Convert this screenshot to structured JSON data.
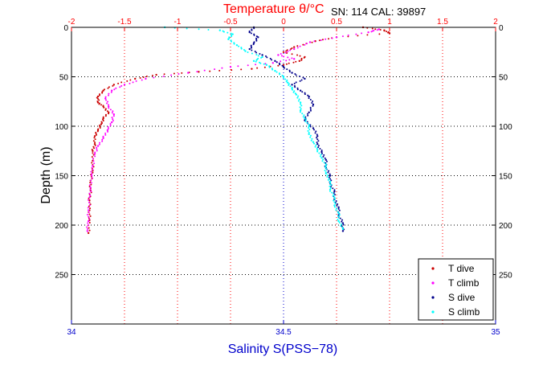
{
  "colors": {
    "temperature_axis": "#ff0000",
    "salinity_axis": "#0000cc",
    "t_dive": "#cc0000",
    "t_climb": "#ff00ff",
    "s_dive": "#00008b",
    "s_climb": "#00ffff",
    "grid_salinity": "#0000cc",
    "grid_temperature": "#ff0000",
    "grid_depth": "#000000"
  },
  "chart_data": {
    "type": "scatter",
    "title": "Temperature θ/°C",
    "annotation": "SN: 114  CAL: 39897",
    "ylabel": "Depth (m)",
    "xlabel": "Salinity S(PSS−78)",
    "x_top_label": "Temperature θ/°C",
    "y_axis": {
      "range": [
        0,
        300
      ],
      "reversed": true,
      "ticks": [
        0,
        50,
        100,
        150,
        200,
        250
      ],
      "tick_labels": [
        "0",
        "50",
        "100",
        "150",
        "200",
        "250"
      ]
    },
    "x_top_axis": {
      "range": [
        -2,
        2
      ],
      "ticks": [
        -2,
        -1.5,
        -1,
        -0.5,
        0,
        0.5,
        1,
        1.5,
        2
      ],
      "tick_labels": [
        "-2",
        "-1.5",
        "-1",
        "-0.5",
        "0",
        "0.5",
        "1",
        "1.5",
        "2"
      ]
    },
    "x_bottom_axis": {
      "range": [
        34,
        35
      ],
      "ticks": [
        34,
        34.5,
        35
      ],
      "tick_labels": [
        "34",
        "34.5",
        "35"
      ]
    },
    "grid": true,
    "legend": {
      "placement": "bottom-right",
      "entries": [
        "T dive",
        "T climb",
        "S dive",
        "S climb"
      ]
    },
    "series": [
      {
        "name": "T dive",
        "x_axis": "temperature",
        "color_key": "t_dive",
        "points": [
          [
            0.75,
            0
          ],
          [
            0.95,
            3
          ],
          [
            1.0,
            6
          ],
          [
            0.5,
            10
          ],
          [
            0.3,
            14
          ],
          [
            0.1,
            20
          ],
          [
            0.0,
            25
          ],
          [
            0.2,
            30
          ],
          [
            0.15,
            34
          ],
          [
            0.0,
            38
          ],
          [
            -0.3,
            42
          ],
          [
            -0.8,
            45
          ],
          [
            -1.2,
            48
          ],
          [
            -1.4,
            52
          ],
          [
            -1.6,
            58
          ],
          [
            -1.7,
            64
          ],
          [
            -1.75,
            70
          ],
          [
            -1.75,
            76
          ],
          [
            -1.7,
            80
          ],
          [
            -1.65,
            86
          ],
          [
            -1.7,
            92
          ],
          [
            -1.72,
            98
          ],
          [
            -1.75,
            104
          ],
          [
            -1.78,
            110
          ],
          [
            -1.78,
            118
          ],
          [
            -1.8,
            125
          ],
          [
            -1.8,
            135
          ],
          [
            -1.8,
            145
          ],
          [
            -1.82,
            155
          ],
          [
            -1.82,
            165
          ],
          [
            -1.83,
            175
          ],
          [
            -1.83,
            185
          ],
          [
            -1.83,
            195
          ],
          [
            -1.84,
            208
          ]
        ]
      },
      {
        "name": "T climb",
        "x_axis": "temperature",
        "color_key": "t_climb",
        "points": [
          [
            0.9,
            2
          ],
          [
            0.8,
            5
          ],
          [
            0.5,
            10
          ],
          [
            0.25,
            15
          ],
          [
            0.1,
            22
          ],
          [
            -0.05,
            28
          ],
          [
            0.1,
            32
          ],
          [
            -0.1,
            36
          ],
          [
            -0.5,
            40
          ],
          [
            -0.9,
            46
          ],
          [
            -1.3,
            52
          ],
          [
            -1.5,
            58
          ],
          [
            -1.62,
            64
          ],
          [
            -1.68,
            72
          ],
          [
            -1.65,
            80
          ],
          [
            -1.6,
            88
          ],
          [
            -1.62,
            96
          ],
          [
            -1.66,
            104
          ],
          [
            -1.7,
            112
          ],
          [
            -1.75,
            120
          ],
          [
            -1.78,
            128
          ],
          [
            -1.8,
            140
          ],
          [
            -1.81,
            150
          ],
          [
            -1.82,
            162
          ],
          [
            -1.83,
            172
          ],
          [
            -1.84,
            185
          ],
          [
            -1.84,
            196
          ],
          [
            -1.85,
            206
          ]
        ]
      },
      {
        "name": "S dive",
        "x_axis": "salinity",
        "color_key": "s_dive",
        "points": [
          [
            34.43,
            0
          ],
          [
            34.42,
            5
          ],
          [
            34.44,
            10
          ],
          [
            34.43,
            16
          ],
          [
            34.42,
            22
          ],
          [
            34.45,
            28
          ],
          [
            34.48,
            34
          ],
          [
            34.5,
            40
          ],
          [
            34.52,
            46
          ],
          [
            34.55,
            52
          ],
          [
            34.52,
            58
          ],
          [
            34.54,
            64
          ],
          [
            34.56,
            70
          ],
          [
            34.57,
            78
          ],
          [
            34.56,
            86
          ],
          [
            34.55,
            94
          ],
          [
            34.57,
            102
          ],
          [
            34.58,
            110
          ],
          [
            34.58,
            118
          ],
          [
            34.59,
            126
          ],
          [
            34.6,
            134
          ],
          [
            34.6,
            142
          ],
          [
            34.61,
            150
          ],
          [
            34.61,
            158
          ],
          [
            34.62,
            166
          ],
          [
            34.62,
            174
          ],
          [
            34.63,
            182
          ],
          [
            34.63,
            190
          ],
          [
            34.64,
            198
          ],
          [
            34.64,
            206
          ]
        ]
      },
      {
        "name": "S climb",
        "x_axis": "salinity",
        "color_key": "s_climb",
        "points": [
          [
            34.22,
            0
          ],
          [
            34.35,
            3
          ],
          [
            34.38,
            7
          ],
          [
            34.37,
            12
          ],
          [
            34.39,
            18
          ],
          [
            34.41,
            24
          ],
          [
            34.45,
            30
          ],
          [
            34.43,
            34
          ],
          [
            34.46,
            38
          ],
          [
            34.48,
            44
          ],
          [
            34.5,
            50
          ],
          [
            34.51,
            56
          ],
          [
            34.52,
            62
          ],
          [
            34.53,
            68
          ],
          [
            34.54,
            76
          ],
          [
            34.54,
            84
          ],
          [
            34.55,
            92
          ],
          [
            34.56,
            100
          ],
          [
            34.56,
            108
          ],
          [
            34.57,
            116
          ],
          [
            34.58,
            124
          ],
          [
            34.59,
            132
          ],
          [
            34.6,
            140
          ],
          [
            34.6,
            148
          ],
          [
            34.61,
            156
          ],
          [
            34.61,
            164
          ],
          [
            34.62,
            172
          ],
          [
            34.62,
            180
          ],
          [
            34.63,
            188
          ],
          [
            34.63,
            196
          ],
          [
            34.64,
            204
          ]
        ]
      }
    ]
  }
}
